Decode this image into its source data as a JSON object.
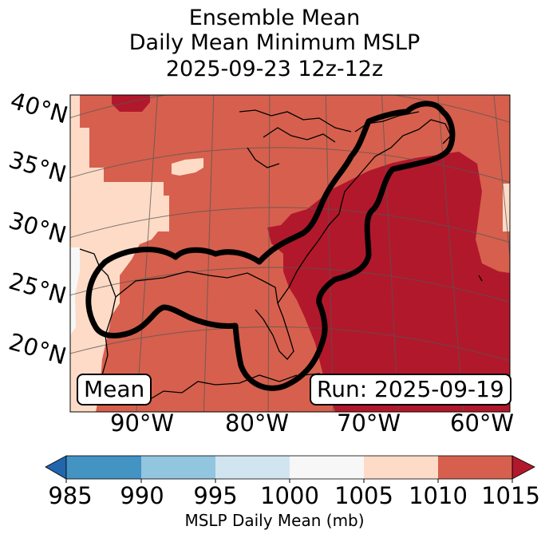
{
  "title": {
    "line1": "Ensemble Mean",
    "line2": "Daily Mean Minimum MSLP",
    "line3": "2025-09-23 12z-12z"
  },
  "map": {
    "lat_labels": [
      "40°N",
      "35°N",
      "30°N",
      "25°N",
      "20°N"
    ],
    "lon_labels": [
      "90°W",
      "80°W",
      "70°W",
      "60°W"
    ],
    "badge_left": "Mean",
    "badge_right": "Run: 2025-09-19"
  },
  "colorbar": {
    "ticks": [
      "985",
      "990",
      "995",
      "1000",
      "1005",
      "1010",
      "1015"
    ],
    "label": "MSLP Daily Mean (mb)",
    "colors": {
      "below": "#2166ac",
      "c985_990": "#4393c3",
      "c990_995": "#92c5de",
      "c995_1000": "#d1e5f0",
      "c1000_1005": "#f7f7f7",
      "c1005_1010": "#fddbc7",
      "c1010_1015": "#d6604d",
      "above": "#b2182b"
    }
  }
}
